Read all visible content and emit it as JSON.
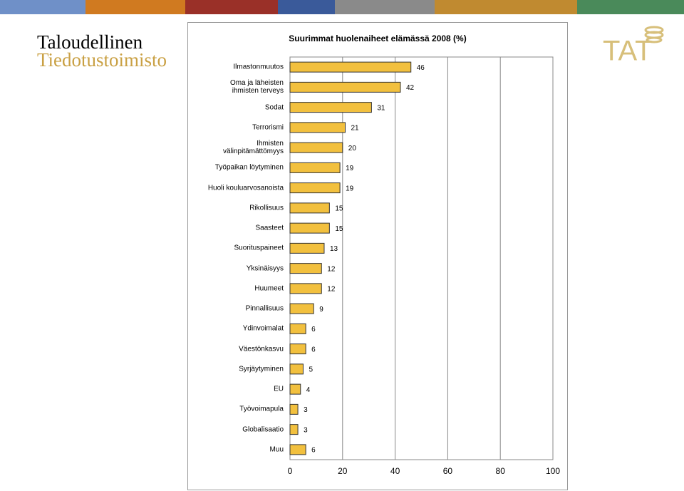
{
  "logo": {
    "line1": "Taloudellinen",
    "line2": "Tiedotustoimisto"
  },
  "brand": "TAT",
  "chart_data": {
    "type": "bar",
    "orientation": "horizontal",
    "title": "Suurimmat huolenaiheet elämässä 2008 (%)",
    "categories": [
      "Ilmastonmuutos",
      "Oma ja läheisten\nihmisten terveys",
      "Sodat",
      "Terrorismi",
      "Ihmisten\nvälinpitämättömyys",
      "Työpaikan löytyminen",
      "Huoli kouluarvosanoista",
      "Rikollisuus",
      "Saasteet",
      "Suorituspaineet",
      "Yksinäisyys",
      "Huumeet",
      "Pinnallisuus",
      "Ydinvoimalat",
      "Väestönkasvu",
      "Syrjäytyminen",
      "EU",
      "Työvoimapula",
      "Globalisaatio",
      "Muu"
    ],
    "values": [
      46,
      42,
      31,
      21,
      20,
      19,
      19,
      15,
      15,
      13,
      12,
      12,
      9,
      6,
      6,
      5,
      4,
      3,
      3,
      6
    ],
    "color": "#f2c03e",
    "xlim": [
      0,
      100
    ],
    "xticks": [
      0,
      20,
      40,
      60,
      80,
      100
    ],
    "grid": true
  }
}
